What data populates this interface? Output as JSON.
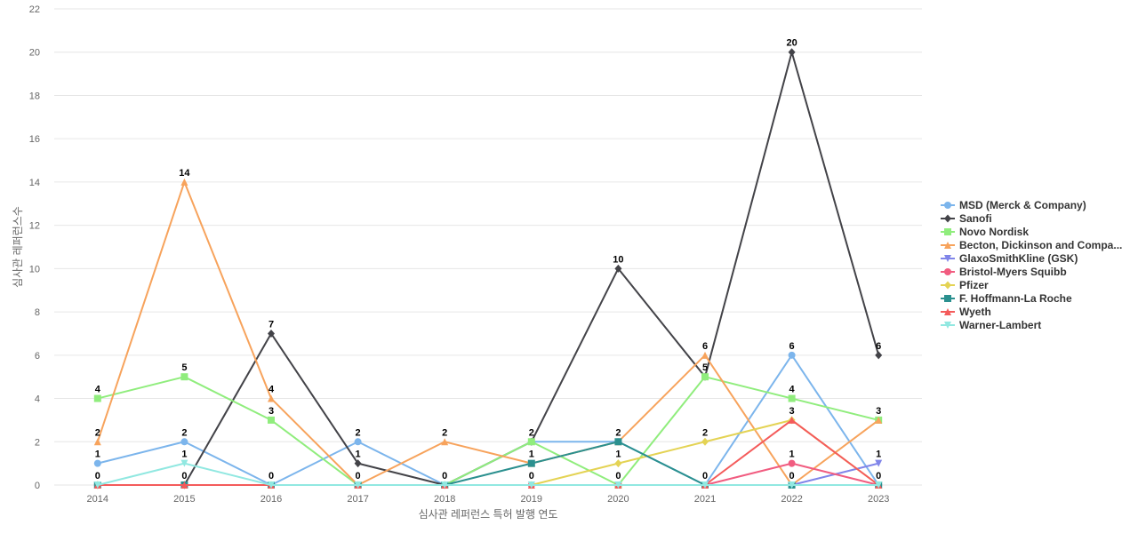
{
  "chart_data": {
    "type": "line",
    "title": "",
    "xlabel": "심사관 레퍼런스 특허 발행 연도",
    "ylabel": "심사관 레퍼런스수",
    "x": [
      "2014",
      "2015",
      "2016",
      "2017",
      "2018",
      "2019",
      "2020",
      "2021",
      "2022",
      "2023"
    ],
    "ylim": [
      0,
      22
    ],
    "yticks": [
      0,
      2,
      4,
      6,
      8,
      10,
      12,
      14,
      16,
      18,
      20,
      22
    ],
    "grid": true,
    "legend_position": "right",
    "series": [
      {
        "name": "MSD (Merck & Company)",
        "color": "#7cb5ec",
        "marker": "circle",
        "values": [
          1,
          2,
          0,
          2,
          0,
          2,
          2,
          0,
          6,
          0
        ]
      },
      {
        "name": "Sanofi",
        "color": "#434348",
        "marker": "diamond",
        "values": [
          0,
          0,
          7,
          1,
          0,
          2,
          10,
          5,
          20,
          6
        ]
      },
      {
        "name": "Novo Nordisk",
        "color": "#90ed7d",
        "marker": "square",
        "values": [
          4,
          5,
          3,
          0,
          0,
          2,
          0,
          5,
          4,
          3
        ]
      },
      {
        "name": "Becton, Dickinson and Compa...",
        "color": "#f7a35c",
        "marker": "triangle",
        "values": [
          2,
          14,
          4,
          0,
          2,
          1,
          2,
          6,
          0,
          3
        ]
      },
      {
        "name": "GlaxoSmithKline (GSK)",
        "color": "#8085e9",
        "marker": "triangle-down",
        "values": [
          0,
          0,
          0,
          0,
          0,
          0,
          0,
          0,
          0,
          1
        ]
      },
      {
        "name": "Bristol-Myers Squibb",
        "color": "#f15c80",
        "marker": "circle",
        "values": [
          0,
          0,
          0,
          0,
          0,
          0,
          0,
          0,
          1,
          0
        ]
      },
      {
        "name": "Pfizer",
        "color": "#e4d354",
        "marker": "diamond",
        "values": [
          0,
          0,
          0,
          0,
          0,
          0,
          1,
          2,
          3,
          0
        ]
      },
      {
        "name": "F. Hoffmann-La Roche",
        "color": "#2b908f",
        "marker": "square",
        "values": [
          0,
          0,
          0,
          0,
          0,
          1,
          2,
          0,
          0,
          0
        ]
      },
      {
        "name": "Wyeth",
        "color": "#f45b5b",
        "marker": "triangle",
        "values": [
          0,
          0,
          0,
          0,
          0,
          0,
          0,
          0,
          3,
          0
        ]
      },
      {
        "name": "Warner-Lambert",
        "color": "#91e8e1",
        "marker": "triangle-down",
        "values": [
          0,
          1,
          0,
          0,
          0,
          0,
          0,
          0,
          0,
          0
        ]
      }
    ],
    "data_labels": [
      {
        "x": "2014",
        "value": 4
      },
      {
        "x": "2014",
        "value": 2
      },
      {
        "x": "2014",
        "value": 1
      },
      {
        "x": "2014",
        "value": 0
      },
      {
        "x": "2015",
        "value": 14
      },
      {
        "x": "2015",
        "value": 5
      },
      {
        "x": "2015",
        "value": 2
      },
      {
        "x": "2015",
        "value": 1
      },
      {
        "x": "2015",
        "value": 0
      },
      {
        "x": "2016",
        "value": 7
      },
      {
        "x": "2016",
        "value": 4
      },
      {
        "x": "2016",
        "value": 3
      },
      {
        "x": "2016",
        "value": 0
      },
      {
        "x": "2017",
        "value": 2
      },
      {
        "x": "2017",
        "value": 1
      },
      {
        "x": "2017",
        "value": 0
      },
      {
        "x": "2018",
        "value": 2
      },
      {
        "x": "2018",
        "value": 0
      },
      {
        "x": "2019",
        "value": 2
      },
      {
        "x": "2019",
        "value": 1
      },
      {
        "x": "2019",
        "value": 0
      },
      {
        "x": "2020",
        "value": 10
      },
      {
        "x": "2020",
        "value": 2
      },
      {
        "x": "2020",
        "value": 1
      },
      {
        "x": "2020",
        "value": 0
      },
      {
        "x": "2021",
        "value": 6
      },
      {
        "x": "2021",
        "value": 5
      },
      {
        "x": "2021",
        "value": 2
      },
      {
        "x": "2021",
        "value": 0
      },
      {
        "x": "2022",
        "value": 20
      },
      {
        "x": "2022",
        "value": 6
      },
      {
        "x": "2022",
        "value": 4
      },
      {
        "x": "2022",
        "value": 3
      },
      {
        "x": "2022",
        "value": 1
      },
      {
        "x": "2022",
        "value": 0
      },
      {
        "x": "2023",
        "value": 6
      },
      {
        "x": "2023",
        "value": 3
      },
      {
        "x": "2023",
        "value": 1
      },
      {
        "x": "2023",
        "value": 0
      }
    ]
  }
}
